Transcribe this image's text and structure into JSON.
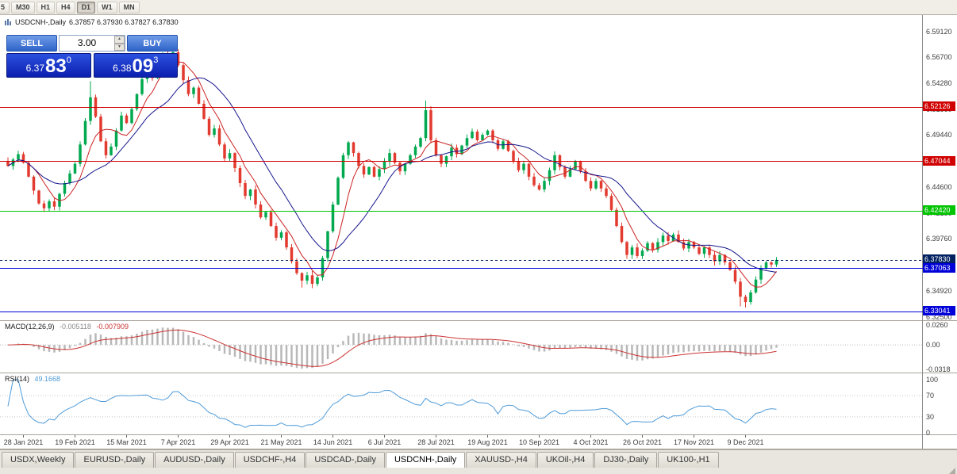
{
  "toolbar": {
    "timeframes": [
      "5",
      "M30",
      "H1",
      "H4",
      "D1",
      "W1",
      "MN"
    ],
    "active": "D1"
  },
  "chart": {
    "symbol_label": "USDCNH-,Daily",
    "ohlc": "6.37857 6.37930 6.37827 6.37830"
  },
  "trade_panel": {
    "sell_label": "SELL",
    "buy_label": "BUY",
    "lot_value": "3.00",
    "spin_up": "▲",
    "spin_down": "▼",
    "bid": {
      "prefix": "6.37",
      "big": "83",
      "sup": "0"
    },
    "ask": {
      "prefix": "6.38",
      "big": "09",
      "sup": "3"
    }
  },
  "price_axis": {
    "labels": [
      "6.59120",
      "6.56700",
      "6.54280",
      "6.51860",
      "6.49440",
      "6.47020",
      "6.44600",
      "6.42180",
      "6.39760",
      "6.37340",
      "6.34920",
      "6.32500"
    ]
  },
  "levels": [
    {
      "text": "6.52126",
      "color": "#d00000",
      "style": "solid",
      "role": "resistance"
    },
    {
      "text": "6.47044",
      "color": "#d00000",
      "style": "solid",
      "role": "resistance"
    },
    {
      "text": "6.42420",
      "color": "#00c400",
      "style": "solid",
      "role": "level"
    },
    {
      "text": "6.37830",
      "color": "#002060",
      "style": "dashed",
      "role": "bid"
    },
    {
      "text": "6.37063",
      "color": "#0000d8",
      "style": "solid",
      "role": "support"
    },
    {
      "text": "6.33041",
      "color": "#0000d8",
      "style": "solid",
      "role": "support"
    }
  ],
  "chart_data": {
    "type": "candlestick",
    "symbol": "USDCNH",
    "timeframe": "Daily",
    "y_range": [
      6.3228,
      6.5964
    ],
    "up_color": "#00a94f",
    "down_color": "#e23a2e",
    "ma_fast_period": 6,
    "ma_slow_period": 14,
    "ma_fast_color": "#cc2222",
    "ma_slow_color": "#16168c",
    "closes": [
      6.466,
      6.472,
      6.477,
      6.469,
      6.456,
      6.443,
      6.431,
      6.4265,
      6.433,
      6.428,
      6.44,
      6.45,
      6.459,
      6.468,
      6.486,
      6.508,
      6.53,
      6.512,
      6.489,
      6.476,
      6.484,
      6.499,
      6.513,
      6.506,
      6.519,
      6.533,
      6.547,
      6.557,
      6.548,
      6.562,
      6.571,
      6.565,
      6.572,
      6.56,
      6.546,
      6.533,
      6.539,
      6.524,
      6.51,
      6.495,
      6.501,
      6.486,
      6.473,
      6.478,
      6.464,
      6.45,
      6.438,
      6.444,
      6.43,
      6.418,
      6.423,
      6.41,
      6.399,
      6.404,
      6.39,
      6.377,
      6.366,
      6.359,
      6.364,
      6.356,
      6.362,
      6.38,
      6.405,
      6.43,
      6.455,
      6.476,
      6.488,
      6.478,
      6.466,
      6.458,
      6.465,
      6.456,
      6.463,
      6.47,
      6.478,
      6.469,
      6.461,
      6.468,
      6.476,
      6.484,
      6.492,
      6.518,
      6.49,
      6.476,
      6.468,
      6.475,
      6.483,
      6.477,
      6.485,
      6.492,
      6.498,
      6.49,
      6.495,
      6.499,
      6.49,
      6.482,
      6.489,
      6.48,
      6.47,
      6.462,
      6.468,
      6.456,
      6.448,
      6.444,
      6.452,
      6.462,
      6.476,
      6.465,
      6.456,
      6.463,
      6.47,
      6.461,
      6.452,
      6.445,
      6.452,
      6.445,
      6.438,
      6.425,
      6.41,
      6.395,
      6.383,
      6.39,
      6.382,
      6.387,
      6.394,
      6.388,
      6.395,
      6.401,
      6.396,
      6.402,
      6.395,
      6.389,
      6.395,
      6.39,
      6.384,
      6.39,
      6.383,
      6.377,
      6.383,
      6.376,
      6.369,
      6.358,
      6.344,
      6.339,
      6.348,
      6.36,
      6.37,
      6.376,
      6.374,
      6.3783
    ],
    "wick_overrides": {
      "7": {
        "l": 6.423
      },
      "16": {
        "h": 6.545
      },
      "31": {
        "h": 6.578
      },
      "57": {
        "l": 6.3525
      },
      "59": {
        "l": 6.352
      },
      "81": {
        "h": 6.527
      },
      "142": {
        "l": 6.335
      },
      "143": {
        "l": 6.334
      }
    },
    "date_labels": [
      "28 Jan 2021",
      "19 Feb 2021",
      "15 Mar 2021",
      "7 Apr 2021",
      "29 Apr 2021",
      "21 May 2021",
      "14 Jun 2021",
      "6 Jul 2021",
      "28 Jul 2021",
      "19 Aug 2021",
      "10 Sep 2021",
      "4 Oct 2021",
      "26 Oct 2021",
      "17 Nov 2021",
      "9 Dec 2021"
    ],
    "date_label_indices": [
      3,
      13,
      23,
      33,
      43,
      53,
      63,
      73,
      83,
      93,
      103,
      113,
      123,
      133,
      143
    ]
  },
  "macd_panel": {
    "title": "MACD(12,26,9)",
    "value_main": "-0.005118",
    "value_signal": "-0.007909",
    "axis_labels": [
      "0.0260",
      "0.00",
      "-0.0318"
    ],
    "range": [
      -0.036,
      0.03
    ],
    "hist_color": "#b8b8b8",
    "signal_color": "#cc3333"
  },
  "rsi_panel": {
    "title": "RSI(14)",
    "value": "49.1668",
    "axis_labels": [
      "100",
      "70",
      "30",
      "0"
    ],
    "levels": [
      70,
      30
    ],
    "line_color": "#4f9bd8"
  },
  "tabs": {
    "items": [
      "USDX,Weekly",
      "EURUSD-,Daily",
      "AUDUSD-,Daily",
      "USDCHF-,H4",
      "USDCAD-,Daily",
      "USDCNH-,Daily",
      "XAUUSD-,H4",
      "UKOil-,H4",
      "DJ30-,Daily",
      "UK100-,H1"
    ],
    "active": "USDCNH-,Daily"
  }
}
